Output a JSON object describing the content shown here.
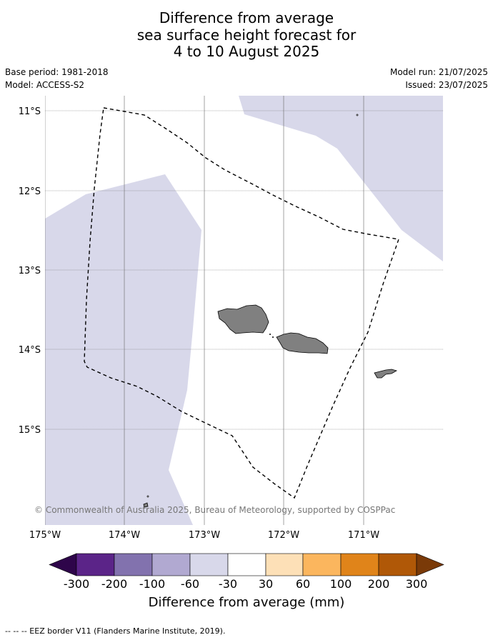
{
  "title": {
    "line1": "Difference from average",
    "line2": "sea surface height forecast for",
    "line3": "4 to 10 August 2025"
  },
  "info": {
    "base_period": "Base period: 1981-2018",
    "model": "Model: ACCESS-S2",
    "model_run": "Model run: 21/07/2025",
    "issued": "Issued: 23/07/2025"
  },
  "map": {
    "lat_labels": [
      "11°S",
      "12°S",
      "13°S",
      "14°S",
      "15°S"
    ],
    "lon_labels": [
      "175°W",
      "174°W",
      "173°W",
      "172°W",
      "171°W"
    ],
    "copyright": "© Commonwealth of Australia 2025, Bureau of Meteorology, supported by COSPPac",
    "ocean_color": "#ffffff",
    "anomaly_shade_color": "#d8d8ea",
    "land_color": "#808080"
  },
  "colorbar": {
    "tick_labels": [
      "-300",
      "-200",
      "-100",
      "-60",
      "-30",
      "30",
      "60",
      "100",
      "200",
      "300"
    ],
    "colors": [
      "#5b2488",
      "#8272ae",
      "#b1a9d1",
      "#d8d8ea",
      "#ffffff",
      "#fde0b7",
      "#fbb65e",
      "#e0841a",
      "#b05807"
    ],
    "under_color": "#2e054a",
    "over_color": "#7a3a08",
    "title": "Difference from average (mm)"
  },
  "footer": "--  --  -- EEZ border V11 (Flanders Marine Institute, 2019)."
}
